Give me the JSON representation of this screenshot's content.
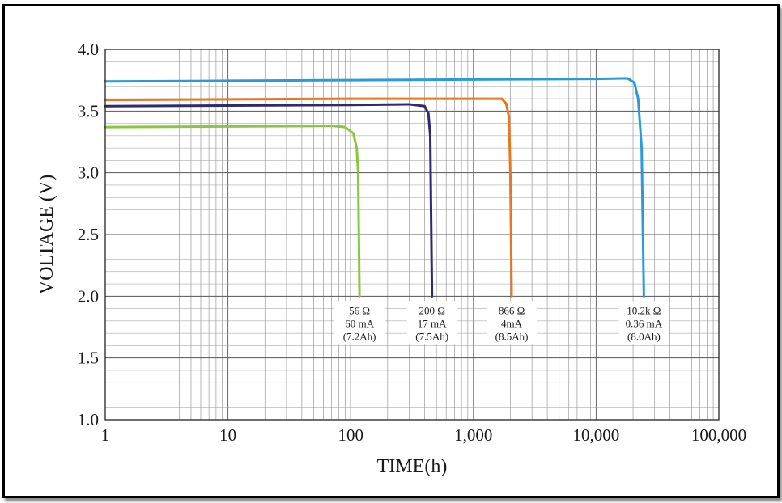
{
  "chart_data": {
    "type": "line",
    "title": "",
    "xlabel": "TIME(h)",
    "ylabel": "VOLTAGE (V)",
    "x_scale": "log",
    "xlim": [
      1,
      100000
    ],
    "ylim": [
      1.0,
      4.0
    ],
    "grid": true,
    "x_ticks": [
      1,
      10,
      100,
      1000,
      10000,
      100000
    ],
    "x_tick_labels": [
      "1",
      "10",
      "100",
      "1,000",
      "10,000",
      "100,000"
    ],
    "y_ticks": [
      1.0,
      1.5,
      2.0,
      2.5,
      3.0,
      3.5,
      4.0
    ],
    "y_tick_labels": [
      "1.0",
      "1.5",
      "2.0",
      "2.5",
      "3.0",
      "3.5",
      "4.0"
    ],
    "series": [
      {
        "color": "#8cc63f",
        "points": [
          [
            1,
            3.37
          ],
          [
            10,
            3.375
          ],
          [
            70,
            3.38
          ],
          [
            90,
            3.37
          ],
          [
            105,
            3.32
          ],
          [
            112,
            3.2
          ],
          [
            115,
            3.0
          ],
          [
            118,
            2.0
          ]
        ],
        "annotation": [
          "56 Ω",
          "60 mA",
          "(7.2Ah)"
        ]
      },
      {
        "color": "#2e2a6e",
        "points": [
          [
            1,
            3.54
          ],
          [
            10,
            3.545
          ],
          [
            100,
            3.55
          ],
          [
            300,
            3.555
          ],
          [
            400,
            3.54
          ],
          [
            430,
            3.48
          ],
          [
            445,
            3.3
          ],
          [
            460,
            2.0
          ]
        ],
        "annotation": [
          "200 Ω",
          "17 mA",
          "(7.5Ah)"
        ]
      },
      {
        "color": "#e87722",
        "points": [
          [
            1,
            3.59
          ],
          [
            10,
            3.595
          ],
          [
            100,
            3.6
          ],
          [
            1000,
            3.6
          ],
          [
            1700,
            3.6
          ],
          [
            1850,
            3.56
          ],
          [
            1950,
            3.45
          ],
          [
            2000,
            3.0
          ],
          [
            2050,
            2.0
          ]
        ],
        "annotation": [
          "866 Ω",
          "4mA",
          "(8.5Ah)"
        ]
      },
      {
        "color": "#2a9bd6",
        "points": [
          [
            1,
            3.74
          ],
          [
            10,
            3.745
          ],
          [
            100,
            3.75
          ],
          [
            1000,
            3.755
          ],
          [
            10000,
            3.76
          ],
          [
            18000,
            3.765
          ],
          [
            20500,
            3.73
          ],
          [
            22000,
            3.6
          ],
          [
            23500,
            3.2
          ],
          [
            24500,
            2.0
          ]
        ],
        "annotation": [
          "10.2k Ω",
          "0.36 mA",
          "(8.0Ah)"
        ]
      }
    ]
  }
}
